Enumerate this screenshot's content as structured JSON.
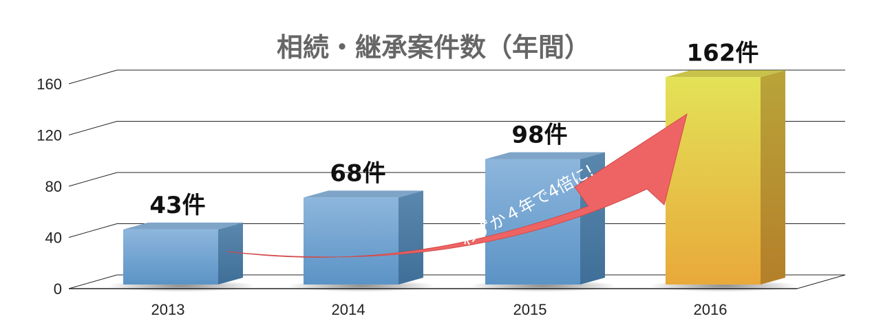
{
  "chart_data": {
    "type": "bar",
    "title": "相続・継承案件数（年間）",
    "categories": [
      "2013",
      "2014",
      "2015",
      "2016"
    ],
    "values": [
      43,
      68,
      98,
      162
    ],
    "data_labels": [
      "43件",
      "68件",
      "98件",
      "162件"
    ],
    "ylim": [
      0,
      160
    ],
    "yticks": [
      "0",
      "40",
      "80",
      "120",
      "160"
    ],
    "xlabel": "",
    "ylabel": "",
    "grid": true,
    "annotation": "わずか４年で4倍に!",
    "colors": {
      "bar_blue": "#6a9ccb",
      "bar_gold": "#e6c03a",
      "arrow": "#ee6464",
      "grid": "#222222"
    }
  }
}
